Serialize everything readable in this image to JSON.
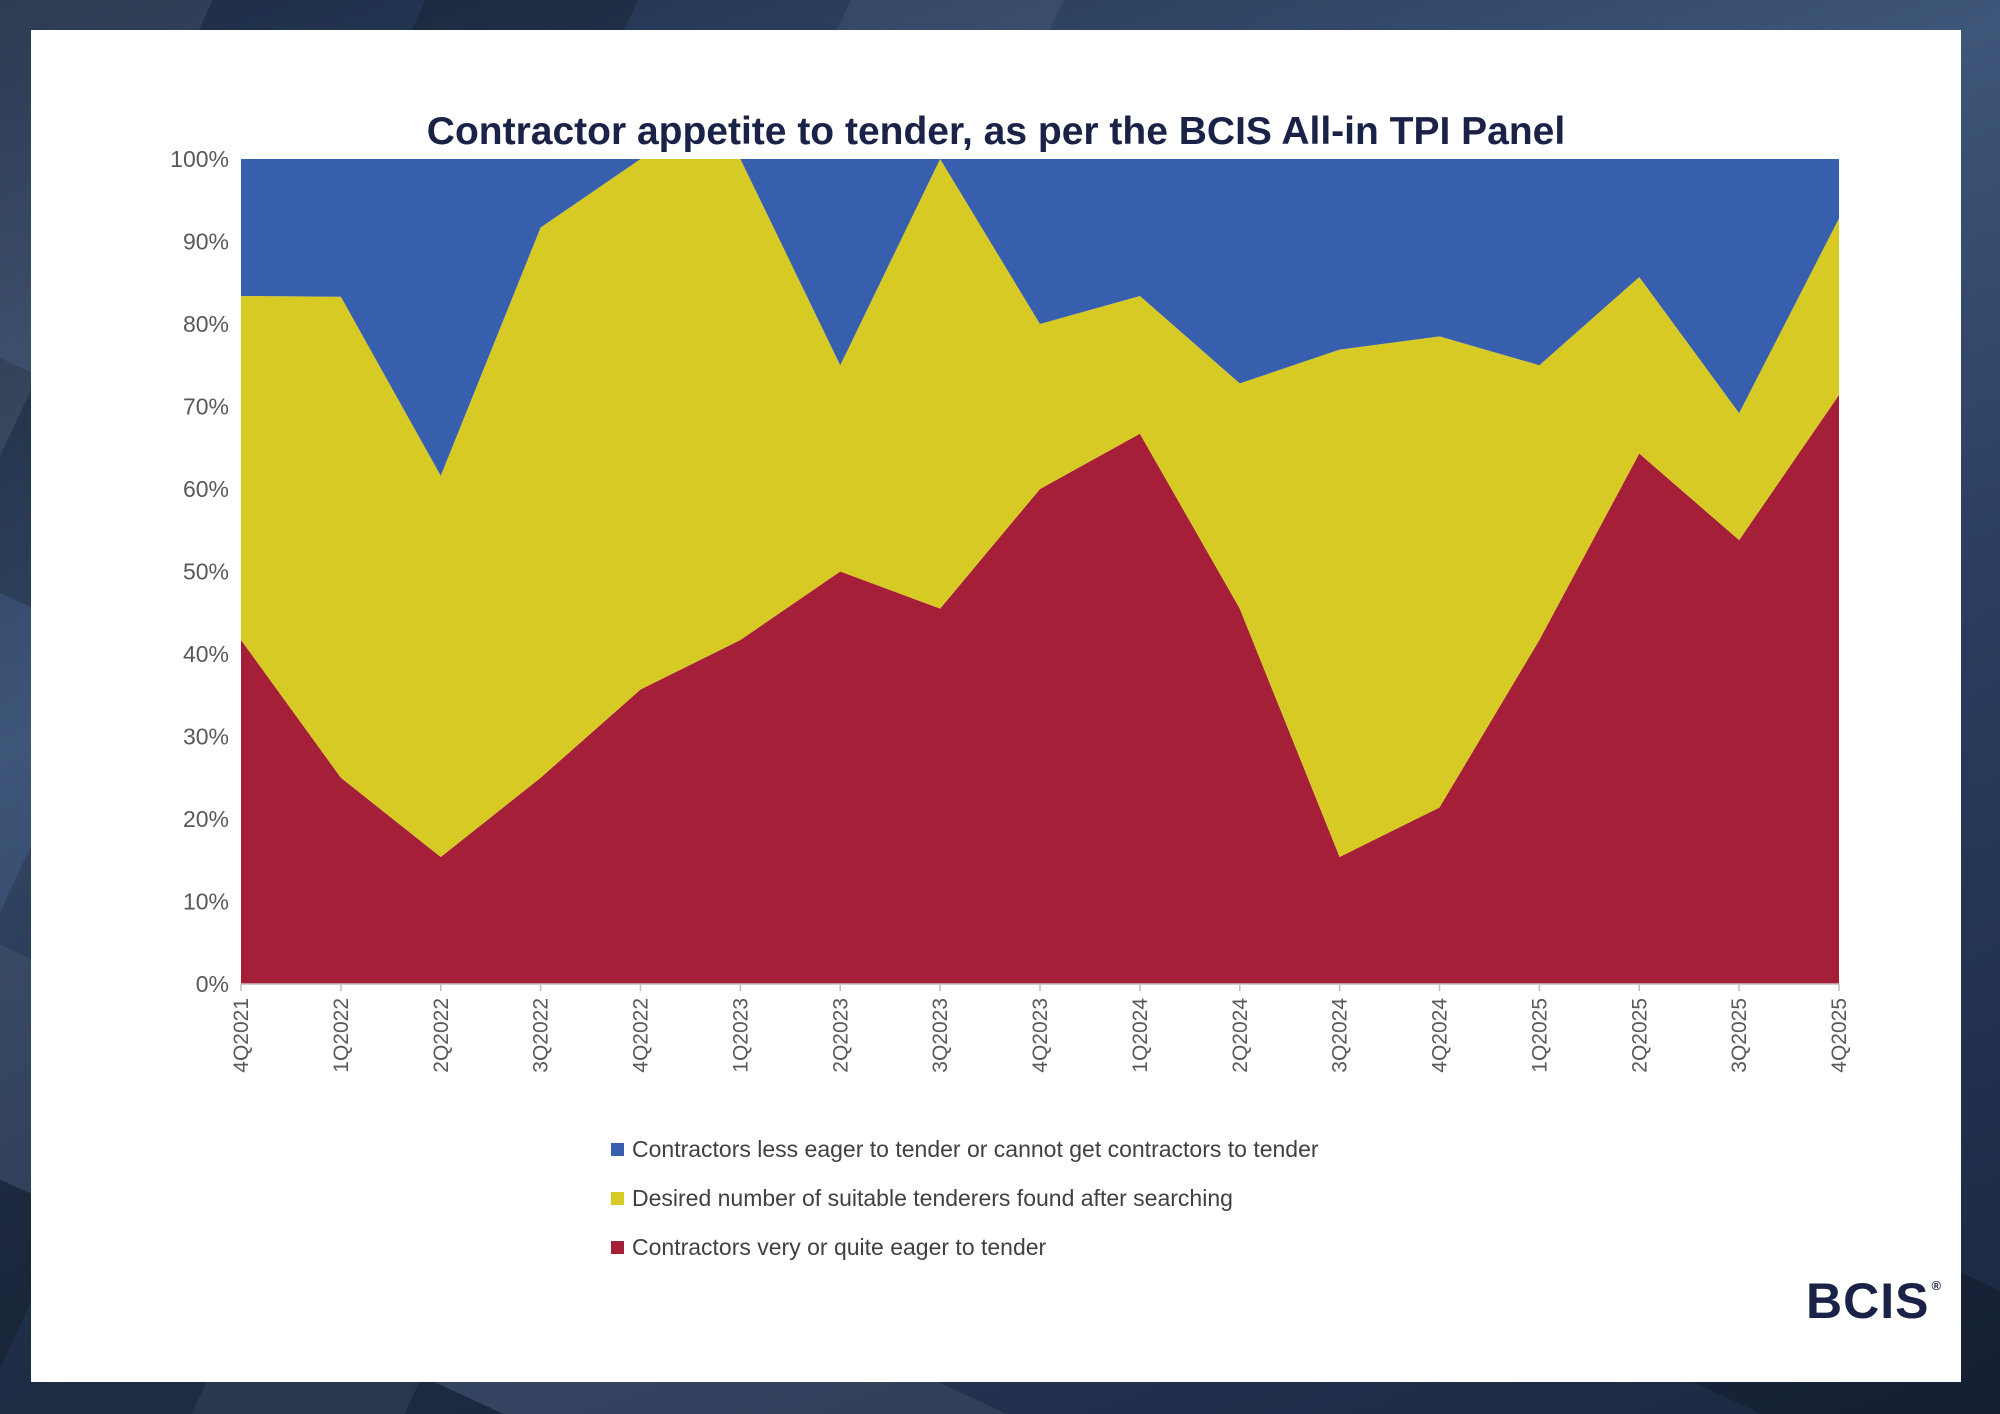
{
  "chart_data": {
    "type": "area",
    "stacked": "percent",
    "title": "Contractor appetite to tender, as per the BCIS All-in TPI Panel",
    "xlabel": "",
    "ylabel": "",
    "ylim": [
      0,
      100
    ],
    "y_ticks": [
      "0%",
      "10%",
      "20%",
      "30%",
      "40%",
      "50%",
      "60%",
      "70%",
      "80%",
      "90%",
      "100%"
    ],
    "categories": [
      "4Q2021",
      "1Q2022",
      "2Q2022",
      "3Q2022",
      "4Q2022",
      "1Q2023",
      "2Q2023",
      "3Q2023",
      "4Q2023",
      "1Q2024",
      "2Q2024",
      "3Q2024",
      "4Q2024",
      "1Q2025",
      "2Q2025",
      "3Q2025",
      "4Q2025"
    ],
    "series": [
      {
        "name": "Contractors very or quite eager to tender",
        "color": "#a51f38",
        "values": [
          41.7,
          25.0,
          15.4,
          25.0,
          35.7,
          41.7,
          50.0,
          45.5,
          60.0,
          66.7,
          45.5,
          15.4,
          21.4,
          41.7,
          64.3,
          53.8,
          71.4
        ]
      },
      {
        "name": "Desired number of suitable tenderers found after searching",
        "color": "#d8ca25",
        "values": [
          41.7,
          58.3,
          46.2,
          66.7,
          64.3,
          58.3,
          25.0,
          54.5,
          20.0,
          16.7,
          27.3,
          61.5,
          57.1,
          33.3,
          21.4,
          15.4,
          21.4
        ]
      },
      {
        "name": "Contractors less eager to tender or cannot get contractors to tender",
        "color": "#385eae",
        "values": [
          16.6,
          16.7,
          38.4,
          8.3,
          0.0,
          0.0,
          25.0,
          0.0,
          20.0,
          16.6,
          27.2,
          23.1,
          21.5,
          25.0,
          14.3,
          30.8,
          7.2
        ]
      }
    ],
    "legend": {
      "position": "bottom",
      "order": [
        "Contractors less eager to tender or cannot get contractors to tender",
        "Desired number of suitable tenderers found after searching",
        "Contractors very or quite eager to tender"
      ]
    }
  },
  "brand": {
    "logo_text": "BCIS",
    "logo_mark": "®",
    "title_color": "#1b2248"
  }
}
